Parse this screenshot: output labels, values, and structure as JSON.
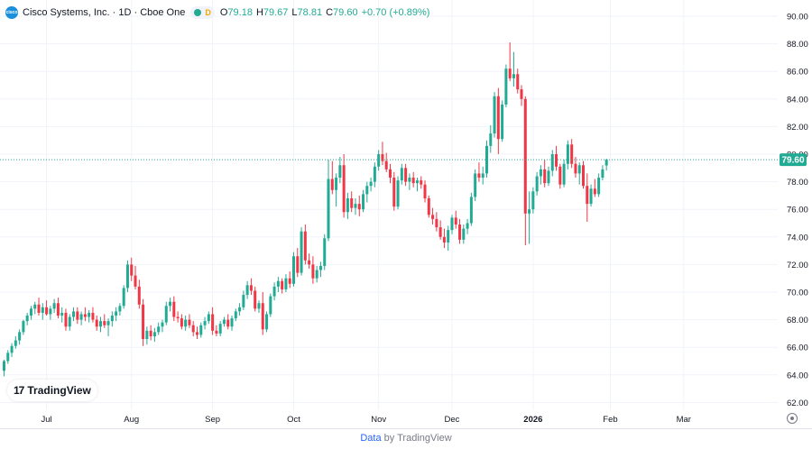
{
  "legend": {
    "logo_text": "cisco",
    "title": "Cisco Systems, Inc. · 1D · Cboe One",
    "market_status": "D",
    "open_key": "O",
    "open": "79.18",
    "high_key": "H",
    "high": "79.67",
    "low_key": "L",
    "low": "78.81",
    "close_key": "C",
    "close": "79.60",
    "change": "+0.70 (+0.89%)"
  },
  "watermark": {
    "logo_mark": "17",
    "logo_text": "TradingView"
  },
  "footer": {
    "data_text": "Data",
    "by_text": " by TradingView"
  },
  "colors": {
    "up": "#22ab94",
    "down": "#f23645",
    "grid": "#f0f3fa",
    "last_line": "#22ab94"
  },
  "chart_data": {
    "type": "candlestick",
    "y_axis": {
      "min": 62,
      "max": 90,
      "step": 2,
      "position": "right",
      "labels": [
        "62.00",
        "64.00",
        "66.00",
        "68.00",
        "70.00",
        "72.00",
        "74.00",
        "76.00",
        "78.00",
        "80.00",
        "82.00",
        "84.00",
        "86.00",
        "88.00",
        "90.00"
      ]
    },
    "x_axis": {
      "months": [
        {
          "label": "Jul",
          "index": 11
        },
        {
          "label": "Aug",
          "index": 33
        },
        {
          "label": "Sep",
          "index": 54
        },
        {
          "label": "Oct",
          "index": 75
        },
        {
          "label": "Nov",
          "index": 97
        },
        {
          "label": "Dec",
          "index": 116
        },
        {
          "label": "2026",
          "index": 137,
          "bold": true
        },
        {
          "label": "Feb",
          "index": 157
        },
        {
          "label": "Mar",
          "index": 176
        }
      ]
    },
    "last_price": 79.6,
    "last_price_label": "79.60",
    "candles": [
      [
        64.3,
        65.1,
        63.9,
        65.0
      ],
      [
        65.0,
        65.8,
        64.8,
        65.6
      ],
      [
        65.6,
        66.3,
        65.3,
        66.1
      ],
      [
        66.1,
        66.8,
        65.9,
        66.5
      ],
      [
        66.5,
        67.3,
        66.2,
        67.1
      ],
      [
        67.1,
        68.0,
        66.9,
        67.9
      ],
      [
        67.9,
        68.5,
        67.6,
        68.3
      ],
      [
        68.3,
        69.0,
        68.0,
        68.8
      ],
      [
        68.8,
        69.3,
        68.4,
        69.1
      ],
      [
        69.1,
        69.6,
        68.3,
        68.5
      ],
      [
        68.5,
        69.2,
        68.0,
        68.9
      ],
      [
        68.9,
        69.4,
        68.3,
        68.4
      ],
      [
        68.4,
        69.0,
        68.0,
        68.8
      ],
      [
        68.8,
        69.5,
        68.5,
        69.2
      ],
      [
        69.2,
        69.6,
        68.1,
        68.3
      ],
      [
        68.3,
        68.9,
        67.8,
        68.5
      ],
      [
        68.5,
        68.8,
        67.2,
        67.5
      ],
      [
        67.5,
        68.4,
        67.2,
        68.2
      ],
      [
        68.2,
        68.9,
        67.9,
        68.6
      ],
      [
        68.6,
        68.9,
        67.7,
        68.0
      ],
      [
        68.0,
        68.6,
        67.6,
        68.4
      ],
      [
        68.4,
        68.9,
        67.9,
        68.2
      ],
      [
        68.2,
        68.7,
        67.8,
        68.5
      ],
      [
        68.5,
        68.9,
        67.8,
        68.0
      ],
      [
        68.0,
        68.3,
        67.2,
        67.5
      ],
      [
        67.5,
        68.2,
        67.1,
        67.9
      ],
      [
        67.9,
        68.4,
        67.4,
        67.6
      ],
      [
        67.6,
        68.1,
        66.8,
        67.9
      ],
      [
        67.9,
        68.6,
        67.5,
        68.3
      ],
      [
        68.3,
        68.9,
        67.9,
        68.6
      ],
      [
        68.6,
        69.2,
        68.3,
        69.0
      ],
      [
        69.0,
        70.5,
        68.8,
        70.3
      ],
      [
        70.3,
        72.3,
        70.0,
        72.0
      ],
      [
        72.0,
        72.5,
        70.8,
        71.2
      ],
      [
        71.2,
        71.9,
        70.2,
        70.4
      ],
      [
        70.4,
        70.9,
        68.8,
        69.1
      ],
      [
        69.1,
        69.5,
        66.1,
        66.6
      ],
      [
        66.6,
        67.5,
        66.2,
        67.2
      ],
      [
        67.2,
        67.6,
        66.5,
        66.8
      ],
      [
        66.8,
        67.4,
        66.4,
        67.1
      ],
      [
        67.1,
        67.8,
        66.9,
        67.5
      ],
      [
        67.5,
        68.0,
        67.1,
        67.8
      ],
      [
        67.8,
        69.3,
        67.6,
        69.0
      ],
      [
        69.0,
        69.6,
        68.6,
        69.3
      ],
      [
        69.3,
        69.7,
        67.9,
        68.2
      ],
      [
        68.2,
        68.6,
        67.8,
        68.1
      ],
      [
        68.1,
        68.4,
        67.3,
        67.5
      ],
      [
        67.5,
        68.3,
        67.2,
        68.0
      ],
      [
        68.0,
        68.4,
        67.4,
        67.6
      ],
      [
        67.6,
        67.9,
        66.8,
        67.1
      ],
      [
        67.1,
        67.5,
        66.6,
        66.9
      ],
      [
        66.9,
        67.8,
        66.7,
        67.6
      ],
      [
        67.6,
        68.2,
        67.3,
        67.9
      ],
      [
        67.9,
        68.6,
        67.7,
        68.4
      ],
      [
        68.4,
        68.9,
        66.9,
        67.2
      ],
      [
        67.2,
        67.6,
        66.8,
        67.0
      ],
      [
        67.0,
        67.9,
        66.8,
        67.7
      ],
      [
        67.7,
        68.2,
        67.5,
        68.0
      ],
      [
        68.0,
        68.4,
        67.3,
        67.5
      ],
      [
        67.5,
        68.3,
        67.2,
        68.1
      ],
      [
        68.1,
        68.8,
        67.9,
        68.6
      ],
      [
        68.6,
        69.2,
        68.3,
        68.9
      ],
      [
        68.9,
        70.1,
        68.7,
        69.8
      ],
      [
        69.8,
        70.8,
        69.5,
        70.5
      ],
      [
        70.5,
        71.0,
        69.8,
        70.1
      ],
      [
        70.1,
        70.4,
        68.6,
        68.8
      ],
      [
        68.8,
        69.4,
        68.5,
        69.2
      ],
      [
        69.2,
        70.0,
        66.9,
        67.3
      ],
      [
        67.3,
        68.6,
        67.1,
        68.4
      ],
      [
        68.4,
        69.9,
        68.2,
        69.7
      ],
      [
        69.7,
        70.7,
        69.4,
        70.4
      ],
      [
        70.4,
        71.1,
        70.0,
        70.8
      ],
      [
        70.8,
        71.0,
        69.9,
        70.2
      ],
      [
        70.2,
        71.3,
        70.0,
        71.0
      ],
      [
        71.0,
        71.5,
        70.3,
        70.6
      ],
      [
        70.6,
        72.9,
        70.4,
        72.6
      ],
      [
        72.6,
        73.2,
        71.1,
        71.4
      ],
      [
        71.4,
        74.7,
        71.2,
        74.4
      ],
      [
        74.4,
        74.9,
        72.0,
        72.3
      ],
      [
        72.3,
        72.8,
        71.7,
        72.0
      ],
      [
        72.0,
        72.6,
        70.6,
        71.0
      ],
      [
        71.0,
        71.9,
        70.7,
        71.6
      ],
      [
        71.6,
        72.2,
        71.1,
        71.9
      ],
      [
        71.9,
        74.2,
        71.6,
        73.9
      ],
      [
        73.9,
        79.6,
        73.7,
        78.2
      ],
      [
        78.2,
        79.5,
        77.1,
        77.4
      ],
      [
        77.4,
        78.6,
        76.2,
        78.3
      ],
      [
        78.3,
        79.8,
        77.9,
        79.2
      ],
      [
        79.2,
        80.0,
        75.4,
        75.8
      ],
      [
        75.8,
        77.2,
        75.3,
        76.8
      ],
      [
        76.8,
        77.3,
        75.8,
        76.1
      ],
      [
        76.1,
        76.8,
        75.6,
        76.4
      ],
      [
        76.4,
        77.0,
        75.5,
        76.0
      ],
      [
        76.0,
        77.4,
        75.8,
        77.1
      ],
      [
        77.1,
        78.0,
        76.5,
        77.7
      ],
      [
        77.7,
        78.3,
        77.3,
        78.0
      ],
      [
        78.0,
        79.4,
        77.6,
        79.1
      ],
      [
        79.1,
        80.3,
        78.8,
        80.0
      ],
      [
        80.0,
        80.9,
        79.2,
        79.5
      ],
      [
        79.5,
        80.1,
        78.7,
        78.9
      ],
      [
        78.9,
        79.3,
        77.9,
        78.3
      ],
      [
        78.3,
        78.7,
        75.9,
        76.2
      ],
      [
        76.2,
        78.4,
        76.0,
        78.1
      ],
      [
        78.1,
        79.3,
        77.8,
        79.0
      ],
      [
        79.0,
        79.3,
        77.7,
        78.0
      ],
      [
        78.0,
        78.6,
        77.4,
        78.3
      ],
      [
        78.3,
        78.7,
        77.6,
        77.9
      ],
      [
        77.9,
        78.3,
        77.3,
        78.1
      ],
      [
        78.1,
        78.4,
        77.5,
        77.8
      ],
      [
        77.8,
        78.1,
        76.5,
        76.8
      ],
      [
        76.8,
        77.0,
        75.4,
        75.6
      ],
      [
        75.6,
        76.1,
        74.9,
        75.3
      ],
      [
        75.3,
        75.8,
        74.4,
        74.7
      ],
      [
        74.7,
        75.2,
        73.8,
        74.0
      ],
      [
        74.0,
        74.6,
        73.2,
        73.6
      ],
      [
        73.6,
        74.8,
        73.0,
        74.5
      ],
      [
        74.5,
        75.6,
        74.2,
        75.4
      ],
      [
        75.4,
        75.9,
        74.6,
        74.9
      ],
      [
        74.9,
        75.3,
        73.5,
        73.8
      ],
      [
        73.8,
        74.9,
        73.5,
        74.6
      ],
      [
        74.6,
        75.3,
        74.2,
        75.0
      ],
      [
        75.0,
        77.2,
        74.8,
        76.9
      ],
      [
        76.9,
        78.9,
        76.6,
        78.6
      ],
      [
        78.6,
        79.4,
        78.0,
        78.3
      ],
      [
        78.3,
        79.1,
        77.8,
        78.6
      ],
      [
        78.6,
        81.0,
        78.3,
        80.6
      ],
      [
        80.6,
        82.1,
        80.1,
        81.5
      ],
      [
        81.5,
        84.5,
        81.2,
        84.2
      ],
      [
        84.2,
        84.8,
        80.0,
        81.1
      ],
      [
        81.1,
        83.9,
        80.9,
        83.6
      ],
      [
        83.6,
        86.5,
        83.4,
        86.2
      ],
      [
        86.2,
        88.1,
        85.3,
        85.5
      ],
      [
        85.5,
        87.4,
        84.9,
        85.8
      ],
      [
        85.8,
        86.2,
        84.4,
        84.7
      ],
      [
        84.7,
        85.0,
        83.5,
        84.0
      ],
      [
        84.0,
        84.2,
        73.4,
        75.7
      ],
      [
        75.7,
        77.3,
        73.5,
        76.0
      ],
      [
        76.0,
        77.6,
        75.7,
        77.3
      ],
      [
        77.3,
        78.7,
        77.0,
        78.4
      ],
      [
        78.4,
        79.2,
        77.8,
        78.9
      ],
      [
        78.9,
        79.6,
        77.6,
        77.9
      ],
      [
        77.9,
        79.1,
        77.7,
        78.8
      ],
      [
        78.8,
        80.3,
        78.4,
        80.0
      ],
      [
        80.0,
        80.6,
        78.8,
        79.1
      ],
      [
        79.1,
        79.3,
        77.5,
        77.8
      ],
      [
        77.8,
        79.6,
        77.6,
        79.3
      ],
      [
        79.3,
        81.0,
        78.9,
        80.7
      ],
      [
        80.7,
        81.1,
        79.0,
        79.3
      ],
      [
        79.3,
        79.8,
        78.3,
        78.6
      ],
      [
        78.6,
        79.4,
        77.8,
        79.2
      ],
      [
        79.2,
        79.5,
        77.5,
        77.7
      ],
      [
        77.7,
        78.6,
        75.1,
        76.4
      ],
      [
        76.4,
        77.8,
        76.2,
        77.5
      ],
      [
        77.5,
        78.2,
        76.9,
        77.1
      ],
      [
        77.1,
        78.6,
        76.9,
        78.3
      ],
      [
        78.3,
        79.2,
        78.1,
        78.9
      ],
      [
        79.18,
        79.67,
        78.81,
        79.6
      ]
    ]
  }
}
